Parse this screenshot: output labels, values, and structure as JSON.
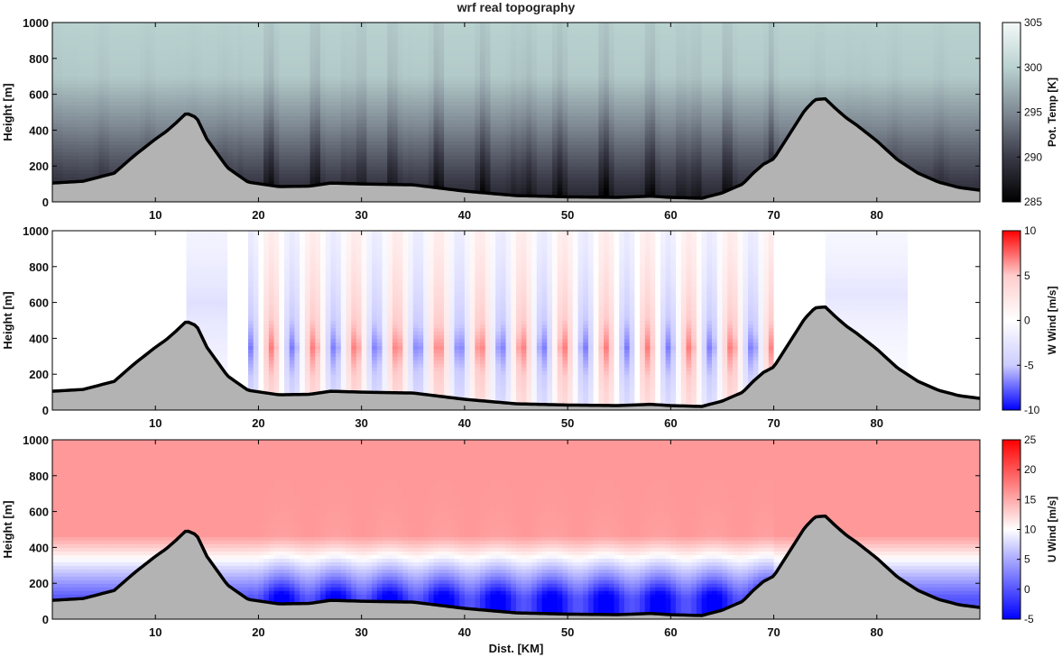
{
  "title": "wrf real topography",
  "xlabel": "Dist. [KM]",
  "x_ticks": [
    "10",
    "20",
    "30",
    "40",
    "50",
    "60",
    "70",
    "80"
  ],
  "colors": {
    "terrain_fill": "#b3b3b3",
    "terrain_line": "#000000"
  },
  "chart_data": [
    {
      "type": "heatmap",
      "field": "potential_temperature",
      "xlim": [
        0,
        90
      ],
      "ylim": [
        0,
        1000
      ],
      "ylabel": "Height [m]",
      "y_ticks": [
        "0",
        "200",
        "400",
        "600",
        "800",
        "1000"
      ],
      "colorbar": {
        "label": "Pot. Temp [K]",
        "range": [
          285,
          305
        ],
        "ticks": [
          "285",
          "290",
          "295",
          "300",
          "305"
        ],
        "colormap": [
          "#000000",
          "#3a3a48",
          "#7f8a94",
          "#b9d2d0",
          "#f4f8f8"
        ]
      }
    },
    {
      "type": "heatmap",
      "field": "w_wind",
      "xlim": [
        0,
        90
      ],
      "ylim": [
        0,
        1000
      ],
      "ylabel": "Height [m]",
      "y_ticks": [
        "0",
        "200",
        "400",
        "600",
        "800",
        "1000"
      ],
      "colorbar": {
        "label": "W Wind [m/s]",
        "range": [
          -10,
          10
        ],
        "ticks": [
          "-10",
          "-5",
          "0",
          "5",
          "10"
        ],
        "colormap": [
          "#0000ff",
          "#ccccff",
          "#ffffff",
          "#ffcccc",
          "#ff0000"
        ]
      }
    },
    {
      "type": "heatmap",
      "field": "u_wind",
      "xlim": [
        0,
        90
      ],
      "ylim": [
        0,
        1000
      ],
      "ylabel": "Height [m]",
      "y_ticks": [
        "0",
        "200",
        "400",
        "600",
        "800",
        "1000"
      ],
      "colorbar": {
        "label": "U Wind [m/s]",
        "range": [
          -5,
          25
        ],
        "ticks": [
          "-5",
          "0",
          "5",
          "10",
          "15",
          "20",
          "25"
        ],
        "colormap": [
          "#0000ff",
          "#ffffff",
          "#ff0000"
        ]
      }
    }
  ],
  "terrain": {
    "x": [
      0,
      3,
      6,
      8,
      10,
      11,
      12,
      13,
      14,
      15,
      17,
      19,
      22,
      25,
      27,
      30,
      35,
      40,
      45,
      50,
      55,
      58,
      60,
      63,
      65,
      67,
      68,
      69,
      70,
      71,
      72,
      73,
      74,
      75,
      76,
      77,
      78,
      80,
      82,
      84,
      86,
      88,
      90
    ],
    "height": [
      105,
      115,
      160,
      260,
      350,
      390,
      440,
      495,
      470,
      350,
      190,
      110,
      85,
      88,
      105,
      100,
      95,
      60,
      35,
      28,
      25,
      32,
      25,
      20,
      50,
      100,
      160,
      210,
      240,
      330,
      420,
      510,
      570,
      575,
      520,
      470,
      430,
      340,
      235,
      160,
      110,
      80,
      65
    ]
  }
}
